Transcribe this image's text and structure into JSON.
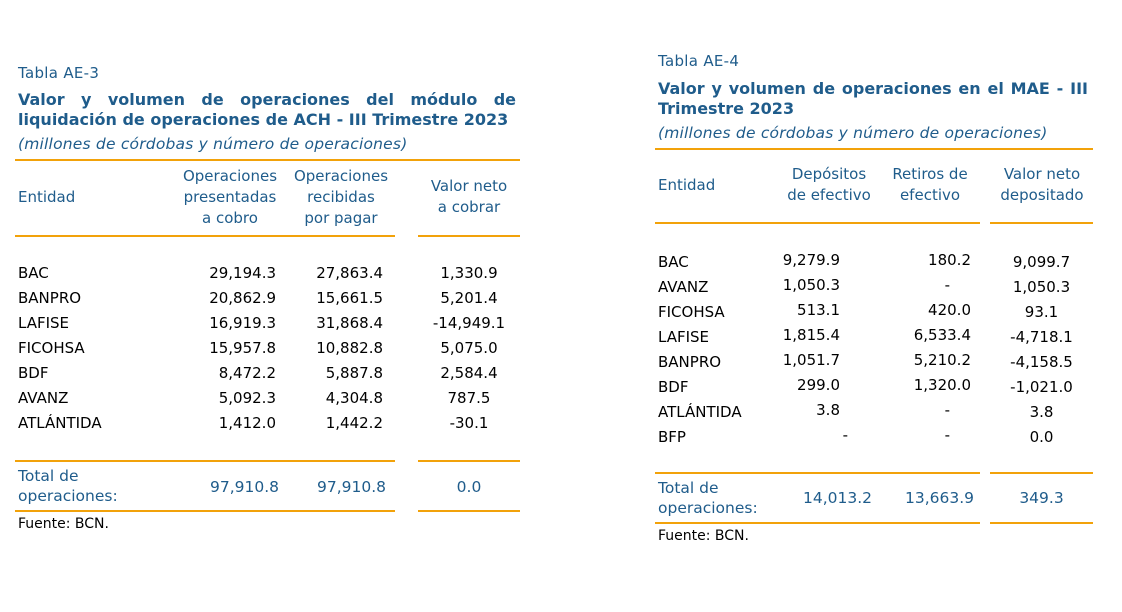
{
  "table1": {
    "label": "Tabla AE-3",
    "title": "Valor y volumen de operaciones del módulo de liquidación de operaciones de ACH - III Trimestre 2023",
    "subtitle": "(millones de córdobas y número de operaciones)",
    "headers": {
      "entity": "Entidad",
      "c1": [
        "Operaciones",
        "presentadas",
        "a cobro"
      ],
      "c2": [
        "Operaciones",
        "recibidas",
        "por pagar"
      ],
      "c3": [
        "Valor neto",
        "a cobrar"
      ]
    },
    "rows": [
      {
        "entity": "BAC",
        "c1": "29,194.3",
        "c2": "27,863.4",
        "c3": "1,330.9"
      },
      {
        "entity": "BANPRO",
        "c1": "20,862.9",
        "c2": "15,661.5",
        "c3": "5,201.4"
      },
      {
        "entity": "LAFISE",
        "c1": "16,919.3",
        "c2": "31,868.4",
        "c3": "-14,949.1"
      },
      {
        "entity": "FICOHSA",
        "c1": "15,957.8",
        "c2": "10,882.8",
        "c3": "5,075.0"
      },
      {
        "entity": "BDF",
        "c1": "8,472.2",
        "c2": "5,887.8",
        "c3": "2,584.4"
      },
      {
        "entity": "AVANZ",
        "c1": "5,092.3",
        "c2": "4,304.8",
        "c3": "787.5"
      },
      {
        "entity": "ATLÁNTIDA",
        "c1": "1,412.0",
        "c2": "1,442.2",
        "c3": "-30.1"
      }
    ],
    "total": {
      "label1": "Total de",
      "label2": "operaciones:",
      "c1": "97,910.8",
      "c2": "97,910.8",
      "c3": "0.0"
    },
    "source": "Fuente: BCN."
  },
  "table2": {
    "label": "Tabla AE-4",
    "title": "Valor y volumen de operaciones en el MAE - III Trimestre 2023",
    "subtitle": "(millones de córdobas y número de operaciones)",
    "headers": {
      "entity": "Entidad",
      "c1": [
        "Depósitos",
        "de efectivo"
      ],
      "c2": [
        "Retiros de",
        "efectivo"
      ],
      "c3": [
        "Valor neto",
        "depositado"
      ]
    },
    "rows": [
      {
        "entity": "BAC",
        "c1": "9,279.9",
        "c2": "180.2",
        "c3": "9,099.7"
      },
      {
        "entity": "AVANZ",
        "c1": "1,050.3",
        "c2": "-",
        "c3": "1,050.3"
      },
      {
        "entity": "FICOHSA",
        "c1": "513.1",
        "c2": "420.0",
        "c3": "93.1"
      },
      {
        "entity": "LAFISE",
        "c1": "1,815.4",
        "c2": "6,533.4",
        "c3": "-4,718.1"
      },
      {
        "entity": "BANPRO",
        "c1": "1,051.7",
        "c2": "5,210.2",
        "c3": "-4,158.5"
      },
      {
        "entity": "BDF",
        "c1": "299.0",
        "c2": "1,320.0",
        "c3": "-1,021.0"
      },
      {
        "entity": "ATLÁNTIDA",
        "c1": "3.8",
        "c2": "-",
        "c3": "3.8"
      },
      {
        "entity": "BFP",
        "c1": "-",
        "c2": "-",
        "c3": "0.0"
      }
    ],
    "total": {
      "label1": "Total de",
      "label2": "operaciones:",
      "c1": "14,013.2",
      "c2": "13,663.9",
      "c3": "349.3"
    },
    "source": "Fuente: BCN."
  }
}
